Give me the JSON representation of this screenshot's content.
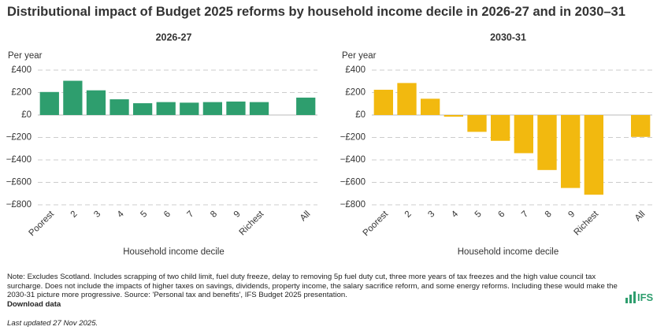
{
  "title": "Distributional impact of Budget 2025 reforms by household income decile in 2026-27 and in 2030–31",
  "chart_data": [
    {
      "type": "bar",
      "title": "2026-27",
      "color": "#2e9e6e",
      "y_label": "Per year",
      "x_label": "Household income decile",
      "categories": [
        "Poorest",
        "2",
        "3",
        "4",
        "5",
        "6",
        "7",
        "8",
        "9",
        "Richest",
        null,
        "All"
      ],
      "values": [
        205,
        305,
        220,
        140,
        105,
        115,
        110,
        115,
        120,
        115,
        null,
        155
      ],
      "ylim": [
        -800,
        400
      ],
      "yticks": [
        {
          "value": 400,
          "label": "£400"
        },
        {
          "value": 200,
          "label": "£200"
        },
        {
          "value": 0,
          "label": "£0"
        },
        {
          "value": -200,
          "label": "−£200"
        },
        {
          "value": -400,
          "label": "−£400"
        },
        {
          "value": -600,
          "label": "−£600"
        },
        {
          "value": -800,
          "label": "−£800"
        }
      ],
      "grid": true
    },
    {
      "type": "bar",
      "title": "2030-31",
      "color": "#f2b90f",
      "y_label": "Per year",
      "x_label": "Household income decile",
      "categories": [
        "Poorest",
        "2",
        "3",
        "4",
        "5",
        "6",
        "7",
        "8",
        "9",
        "Richest",
        null,
        "All"
      ],
      "values": [
        225,
        285,
        145,
        -15,
        -150,
        -230,
        -340,
        -490,
        -650,
        -710,
        null,
        -195
      ],
      "ylim": [
        -800,
        400
      ],
      "yticks": [
        {
          "value": 400,
          "label": "£400"
        },
        {
          "value": 200,
          "label": "£200"
        },
        {
          "value": 0,
          "label": "£0"
        },
        {
          "value": -200,
          "label": "−£200"
        },
        {
          "value": -400,
          "label": "−£400"
        },
        {
          "value": -600,
          "label": "−£600"
        },
        {
          "value": -800,
          "label": "−£800"
        }
      ],
      "grid": true
    }
  ],
  "note": "Note: Excludes Scotland. Includes scrapping of two child limit, fuel duty freeze, delay to removing 5p fuel duty cut, three more years of tax freezes and the high value council tax surcharge. Does not include the impacts of higher taxes on savings, dividends, property income, the salary sacrifice reform, and some energy reforms. Including these would make the 2030-31 picture more progressive. Source: 'Personal tax and benefits', IFS Budget 2025 presentation.",
  "download": "Download data",
  "updated": "Last updated 27 Nov 2025.",
  "logo": "IFS"
}
